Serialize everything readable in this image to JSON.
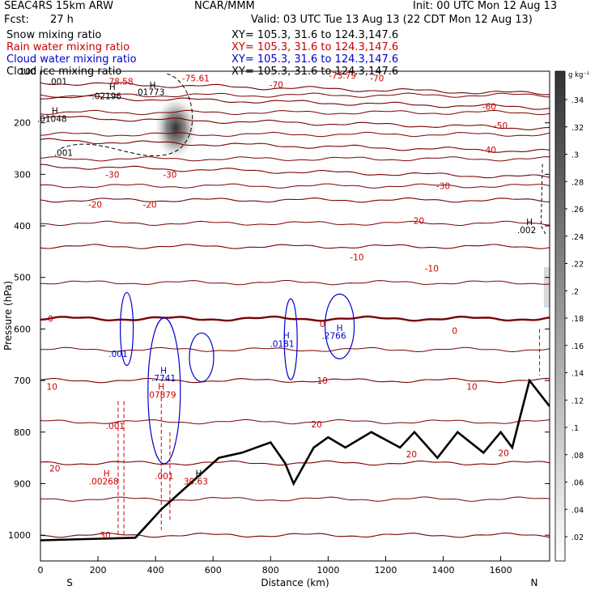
{
  "header": {
    "model": "SEAC4RS 15km ARW",
    "org": "NCAR/MMM",
    "init": "Init: 00 UTC Mon 12 Aug 13",
    "fcst_label": "Fcst:",
    "fcst_value": "27 h",
    "valid": "Valid: 03 UTC Tue 13 Aug 13 (22 CDT Mon 12 Aug 13)",
    "fields": [
      {
        "name": "Snow mixing ratio",
        "xy": "XY= 105.3, 31.6 to 124.3,147.6",
        "color": "#000000"
      },
      {
        "name": "Rain water mixing ratio",
        "xy": "XY= 105.3, 31.6 to 124.3,147.6",
        "color": "#cc0000"
      },
      {
        "name": "Cloud water mixing ratio",
        "xy": "XY= 105.3, 31.6 to 124.3,147.6",
        "color": "#0000cc"
      },
      {
        "name": "Cloud ice mixing ratio",
        "xy": "XY= 105.3, 31.6 to 124.3,147.6",
        "color": "#000000"
      }
    ]
  },
  "chart_data": {
    "type": "cross-section",
    "xlabel": "Distance (km)",
    "ylabel": "Pressure (hPa)",
    "xlim": [
      0,
      1770
    ],
    "ylim": [
      1000,
      100
    ],
    "xticks": [
      0,
      200,
      400,
      600,
      800,
      1000,
      1200,
      1400,
      1600
    ],
    "yticks": [
      200,
      300,
      400,
      500,
      600,
      700,
      800,
      900,
      1000
    ],
    "ytick_labels_text": [
      "100",
      "200",
      "300",
      "400",
      "500",
      "600",
      "700",
      "800",
      "900",
      "1000"
    ],
    "endpoints": {
      "left": "S",
      "right": "N"
    },
    "colorbar": {
      "unit": "g kg⁻¹",
      "ticks": [
        ".02",
        ".04",
        ".06",
        ".08",
        ".1",
        ".12",
        ".14",
        ".16",
        ".18",
        ".2",
        ".22",
        ".24",
        ".26",
        ".28",
        ".3",
        ".32",
        ".34"
      ]
    },
    "temperature_contours": [
      {
        "label": "-70",
        "p": 133
      },
      {
        "label": "-60",
        "p": 160
      },
      {
        "label": "-50",
        "p": 200
      },
      {
        "label": "-40",
        "p": 245
      },
      {
        "label": "-30",
        "p": 295
      },
      {
        "label": "-20",
        "p": 350
      },
      {
        "label": "-10",
        "p": 440
      },
      {
        "label": "0",
        "p": 580
      },
      {
        "label": "10",
        "p": 700
      },
      {
        "label": "20",
        "p": 860
      },
      {
        "label": "30",
        "p": 1000
      }
    ],
    "terrain": [
      {
        "x": 0,
        "p": 1010
      },
      {
        "x": 330,
        "p": 1005
      },
      {
        "x": 420,
        "p": 950
      },
      {
        "x": 520,
        "p": 900
      },
      {
        "x": 620,
        "p": 850
      },
      {
        "x": 700,
        "p": 840
      },
      {
        "x": 800,
        "p": 820
      },
      {
        "x": 850,
        "p": 860
      },
      {
        "x": 880,
        "p": 900
      },
      {
        "x": 950,
        "p": 830
      },
      {
        "x": 1000,
        "p": 810
      },
      {
        "x": 1060,
        "p": 830
      },
      {
        "x": 1150,
        "p": 800
      },
      {
        "x": 1250,
        "p": 830
      },
      {
        "x": 1300,
        "p": 800
      },
      {
        "x": 1380,
        "p": 850
      },
      {
        "x": 1450,
        "p": 800
      },
      {
        "x": 1540,
        "p": 840
      },
      {
        "x": 1600,
        "p": 800
      },
      {
        "x": 1640,
        "p": 830
      },
      {
        "x": 1700,
        "p": 700
      },
      {
        "x": 1770,
        "p": 750
      }
    ],
    "labels": [
      {
        "text": ".001",
        "color": "#000000",
        "x": 60,
        "p": 120
      },
      {
        "text": "H",
        "color": "#000000",
        "x": 250,
        "p": 130
      },
      {
        "text": "78.58",
        "color": "#cc0000",
        "x": 280,
        "p": 120
      },
      {
        "text": "H",
        "color": "#000000",
        "x": 390,
        "p": 127
      },
      {
        "text": ".01773",
        "color": "#000000",
        "x": 380,
        "p": 140
      },
      {
        "text": ".02196",
        "color": "#000000",
        "x": 230,
        "p": 148
      },
      {
        "text": "-75.61",
        "color": "#cc0000",
        "x": 540,
        "p": 113
      },
      {
        "text": "-73.79",
        "color": "#cc0000",
        "x": 1050,
        "p": 108
      },
      {
        "text": "-70",
        "color": "#cc0000",
        "x": 820,
        "p": 126
      },
      {
        "text": "-70",
        "color": "#cc0000",
        "x": 1170,
        "p": 113
      },
      {
        "text": "H",
        "color": "#000000",
        "x": 50,
        "p": 176
      },
      {
        "text": ".01048",
        "color": "#000000",
        "x": 40,
        "p": 192
      },
      {
        "text": "-60",
        "color": "#cc0000",
        "x": 1560,
        "p": 168
      },
      {
        "text": "-50",
        "color": "#cc0000",
        "x": 1600,
        "p": 205
      },
      {
        "text": ".001",
        "color": "#000000",
        "x": 80,
        "p": 258
      },
      {
        "text": "-40",
        "color": "#cc0000",
        "x": 1560,
        "p": 252
      },
      {
        "text": "-30",
        "color": "#cc0000",
        "x": 250,
        "p": 300
      },
      {
        "text": "-30",
        "color": "#cc0000",
        "x": 450,
        "p": 300
      },
      {
        "text": "-30",
        "color": "#cc0000",
        "x": 1400,
        "p": 322
      },
      {
        "text": "-20",
        "color": "#cc0000",
        "x": 190,
        "p": 358
      },
      {
        "text": "-20",
        "color": "#cc0000",
        "x": 380,
        "p": 358
      },
      {
        "text": "-20",
        "color": "#cc0000",
        "x": 1310,
        "p": 390
      },
      {
        "text": "H",
        "color": "#000000",
        "x": 1700,
        "p": 392
      },
      {
        "text": ".002",
        "color": "#000000",
        "x": 1690,
        "p": 408
      },
      {
        "text": "-10",
        "color": "#cc0000",
        "x": 1100,
        "p": 460
      },
      {
        "text": "-10",
        "color": "#cc0000",
        "x": 1360,
        "p": 482
      },
      {
        "text": "0",
        "color": "#cc0000",
        "x": 35,
        "p": 580
      },
      {
        "text": "0",
        "color": "#cc0000",
        "x": 980,
        "p": 590
      },
      {
        "text": "0",
        "color": "#cc0000",
        "x": 1440,
        "p": 603
      },
      {
        "text": "H",
        "color": "#0000cc",
        "x": 855,
        "p": 612
      },
      {
        "text": ".0181",
        "color": "#0000cc",
        "x": 840,
        "p": 628
      },
      {
        "text": "H",
        "color": "#0000cc",
        "x": 1040,
        "p": 598
      },
      {
        "text": ".2766",
        "color": "#0000cc",
        "x": 1020,
        "p": 613
      },
      {
        "text": ".001",
        "color": "#0000cc",
        "x": 270,
        "p": 648
      },
      {
        "text": "H",
        "color": "#0000cc",
        "x": 428,
        "p": 680
      },
      {
        "text": ".7741",
        "color": "#0000cc",
        "x": 428,
        "p": 695
      },
      {
        "text": "H",
        "color": "#cc0000",
        "x": 420,
        "p": 712
      },
      {
        "text": ".07879",
        "color": "#cc0000",
        "x": 420,
        "p": 727
      },
      {
        "text": "10",
        "color": "#cc0000",
        "x": 40,
        "p": 712
      },
      {
        "text": "10",
        "color": "#cc0000",
        "x": 980,
        "p": 700
      },
      {
        "text": "10",
        "color": "#cc0000",
        "x": 1500,
        "p": 712
      },
      {
        "text": ".001",
        "color": "#cc0000",
        "x": 260,
        "p": 788
      },
      {
        "text": "20",
        "color": "#cc0000",
        "x": 960,
        "p": 785
      },
      {
        "text": "20",
        "color": "#cc0000",
        "x": 1290,
        "p": 843
      },
      {
        "text": "20",
        "color": "#cc0000",
        "x": 1610,
        "p": 840
      },
      {
        "text": "20",
        "color": "#cc0000",
        "x": 50,
        "p": 870
      },
      {
        "text": "H",
        "color": "#cc0000",
        "x": 230,
        "p": 880
      },
      {
        "text": ".00268",
        "color": "#cc0000",
        "x": 220,
        "p": 895
      },
      {
        "text": ".001",
        "color": "#cc0000",
        "x": 430,
        "p": 885
      },
      {
        "text": "H",
        "color": "#000000",
        "x": 550,
        "p": 880
      },
      {
        "text": "30.63",
        "color": "#cc0000",
        "x": 540,
        "p": 895
      },
      {
        "text": "30",
        "color": "#cc0000",
        "x": 225,
        "p": 1000
      }
    ]
  }
}
